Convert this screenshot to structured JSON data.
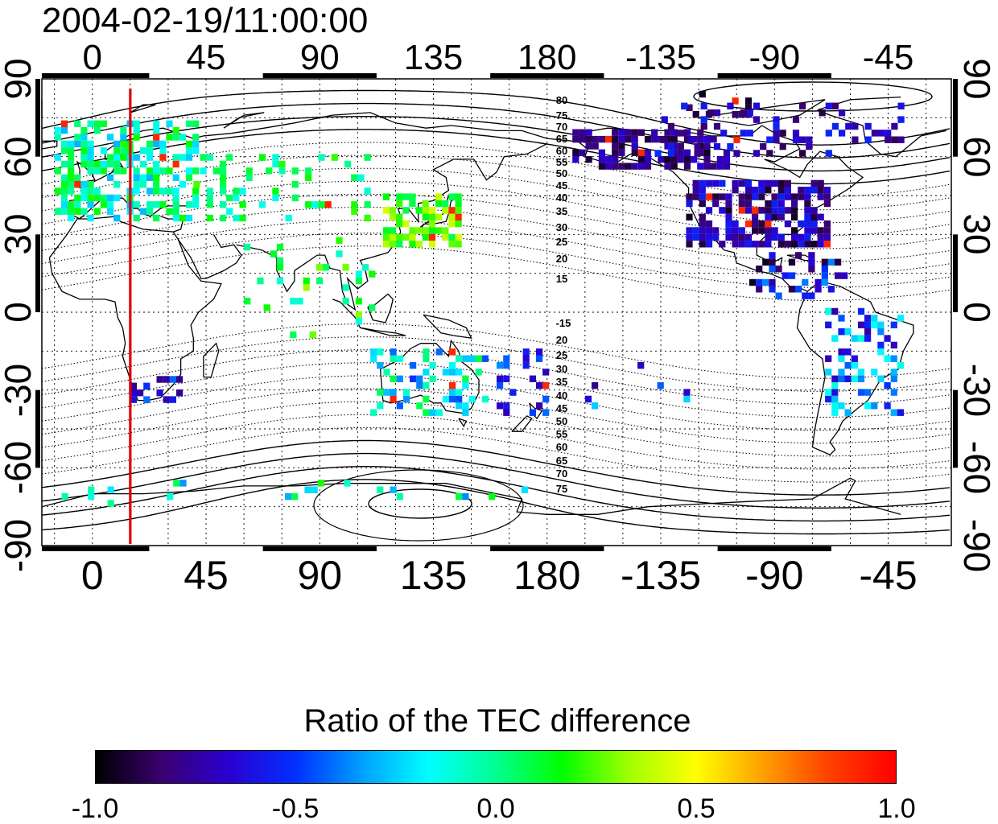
{
  "title": "2004-02-19/11:00:00",
  "lon_ticks_top": [
    "0",
    "45",
    "90",
    "135",
    "180",
    "-135",
    "-90",
    "-45"
  ],
  "lon_ticks_bottom": [
    "0",
    "45",
    "90",
    "135",
    "180",
    "-135",
    "-90",
    "-45"
  ],
  "lat_ticks_left": [
    "90",
    "60",
    "30",
    "0",
    "-30",
    "-60",
    "-90"
  ],
  "lat_ticks_right": [
    "90",
    "60",
    "30",
    "0",
    "-30",
    "-60",
    "-90"
  ],
  "contour_labels_north": [
    "80",
    "75",
    "70",
    "65",
    "60",
    "55",
    "50",
    "45",
    "40",
    "35",
    "30",
    "25",
    "20",
    "15"
  ],
  "contour_labels_south": [
    "-15",
    "20",
    "25",
    "30",
    "35",
    "40",
    "45",
    "50",
    "55",
    "60",
    "65",
    "70",
    "75"
  ],
  "terminator_longitude": 15,
  "colorbar": {
    "title": "Ratio of the TEC difference",
    "ticks": [
      "-1.0",
      "-0.5",
      "0.0",
      "0.5",
      "1.0"
    ],
    "range": [
      -1.0,
      1.0
    ],
    "colors": [
      "#000000",
      "#3a0070",
      "#2a00d0",
      "#0030ff",
      "#00a0ff",
      "#00ffff",
      "#00ff90",
      "#00ff00",
      "#a0ff00",
      "#ffff00",
      "#ffa000",
      "#ff4000",
      "#ff0000"
    ]
  },
  "colors": {
    "terminator": "#dd0000",
    "coast": "#000000"
  }
}
